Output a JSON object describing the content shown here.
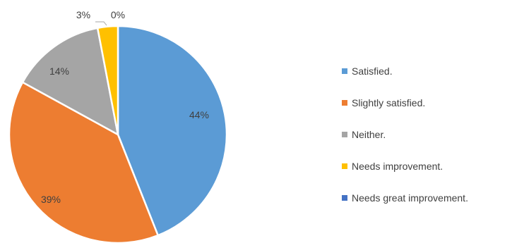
{
  "chart_data": {
    "type": "pie",
    "categories": [
      "Satisfied.",
      "Slightly satisfied.",
      "Neither.",
      "Needs improvement.",
      "Needs great improvement."
    ],
    "values": [
      44,
      39,
      14,
      3,
      0
    ],
    "labels": [
      "44%",
      "39%",
      "14%",
      "3%",
      "0%"
    ],
    "colors": [
      "#5b9bd5",
      "#ed7d31",
      "#a5a5a5",
      "#ffc000",
      "#4472c4"
    ],
    "legend": "right",
    "title": ""
  }
}
